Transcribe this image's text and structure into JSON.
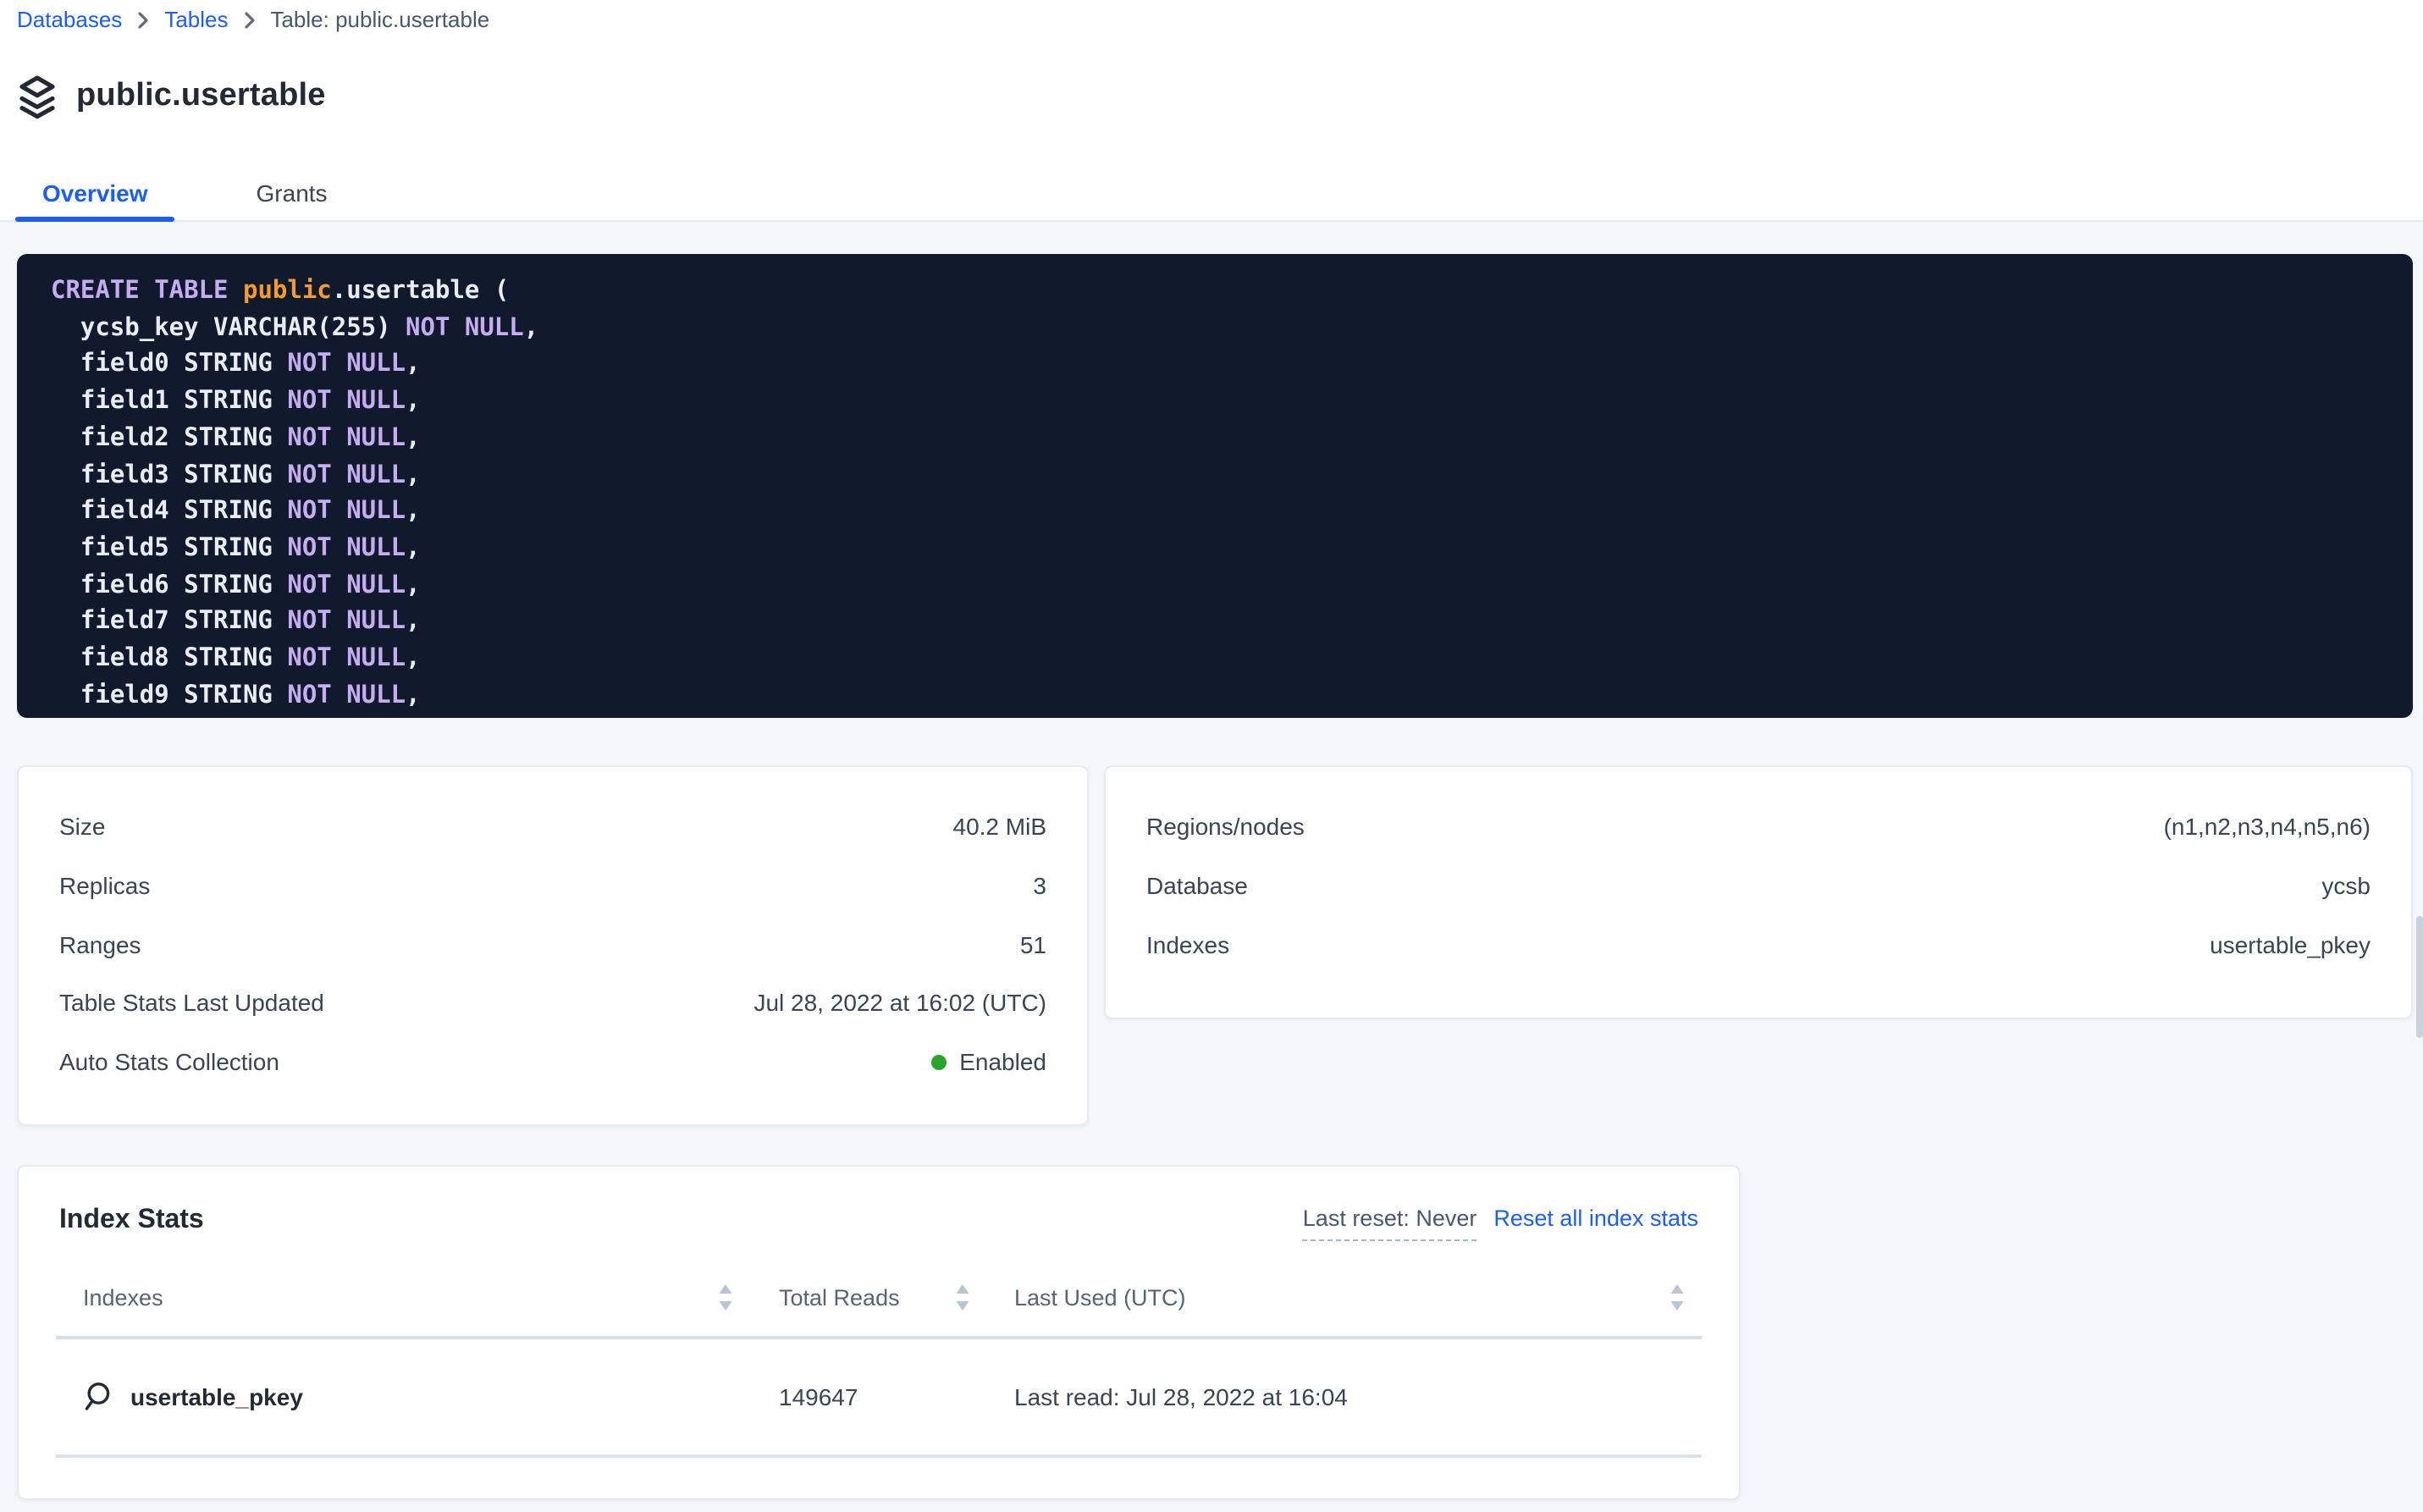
{
  "breadcrumb": {
    "items": [
      {
        "label": "Databases"
      },
      {
        "label": "Tables"
      },
      {
        "label": "Table: public.usertable"
      }
    ]
  },
  "page": {
    "title": "public.usertable"
  },
  "tabs": {
    "overview": "Overview",
    "grants": "Grants"
  },
  "sql": {
    "lines": [
      [
        [
          "CREATE TABLE ",
          "kw"
        ],
        [
          "public",
          "schema"
        ],
        [
          ".",
          "plain"
        ],
        [
          "usertable (",
          "plain"
        ]
      ],
      [
        [
          "  ycsb_key VARCHAR(255) ",
          "plain"
        ],
        [
          "NOT NULL",
          "kw"
        ],
        [
          ",",
          "plain"
        ]
      ],
      [
        [
          "  field0 STRING ",
          "plain"
        ],
        [
          "NOT NULL",
          "kw"
        ],
        [
          ",",
          "plain"
        ]
      ],
      [
        [
          "  field1 STRING ",
          "plain"
        ],
        [
          "NOT NULL",
          "kw"
        ],
        [
          ",",
          "plain"
        ]
      ],
      [
        [
          "  field2 STRING ",
          "plain"
        ],
        [
          "NOT NULL",
          "kw"
        ],
        [
          ",",
          "plain"
        ]
      ],
      [
        [
          "  field3 STRING ",
          "plain"
        ],
        [
          "NOT NULL",
          "kw"
        ],
        [
          ",",
          "plain"
        ]
      ],
      [
        [
          "  field4 STRING ",
          "plain"
        ],
        [
          "NOT NULL",
          "kw"
        ],
        [
          ",",
          "plain"
        ]
      ],
      [
        [
          "  field5 STRING ",
          "plain"
        ],
        [
          "NOT NULL",
          "kw"
        ],
        [
          ",",
          "plain"
        ]
      ],
      [
        [
          "  field6 STRING ",
          "plain"
        ],
        [
          "NOT NULL",
          "kw"
        ],
        [
          ",",
          "plain"
        ]
      ],
      [
        [
          "  field7 STRING ",
          "plain"
        ],
        [
          "NOT NULL",
          "kw"
        ],
        [
          ",",
          "plain"
        ]
      ],
      [
        [
          "  field8 STRING ",
          "plain"
        ],
        [
          "NOT NULL",
          "kw"
        ],
        [
          ",",
          "plain"
        ]
      ],
      [
        [
          "  field9 STRING ",
          "plain"
        ],
        [
          "NOT NULL",
          "kw"
        ],
        [
          ",",
          "plain"
        ]
      ]
    ]
  },
  "cards": {
    "left": {
      "rows": [
        {
          "label": "Size",
          "value": "40.2 MiB"
        },
        {
          "label": "Replicas",
          "value": "3"
        },
        {
          "label": "Ranges",
          "value": "51"
        },
        {
          "label": "Table Stats Last Updated",
          "value": "Jul 28, 2022 at 16:02 (UTC)"
        },
        {
          "label": "Auto Stats Collection",
          "value": "Enabled",
          "status": "enabled"
        }
      ]
    },
    "right": {
      "rows": [
        {
          "label": "Regions/nodes",
          "value": "(n1,n2,n3,n4,n5,n6)"
        },
        {
          "label": "Database",
          "value": "ycsb"
        },
        {
          "label": "Indexes",
          "value": "usertable_pkey"
        }
      ]
    }
  },
  "index_stats": {
    "title": "Index Stats",
    "last_reset": "Last reset: Never",
    "reset_link": "Reset all index stats",
    "columns": [
      "Indexes",
      "Total Reads",
      "Last Used (UTC)"
    ],
    "rows": [
      {
        "name": "usertable_pkey",
        "total_reads": "149647",
        "last_used": "Last read: Jul 28, 2022 at 16:04"
      }
    ]
  },
  "icons": {
    "title": "layers-icon",
    "breadcrumb_separator": "chevron-right-icon",
    "index_row": "search-icon",
    "column_sort": "sort-arrows-icon",
    "status": "green-dot"
  },
  "colors": {
    "accent_blue": "#1b5ff0",
    "status_green": "#2aa62a",
    "code_background": "#111a2d",
    "code_keyword": "#c6adf1",
    "code_schema_name": "#f39b32",
    "page_background": "#f4f6fa"
  }
}
